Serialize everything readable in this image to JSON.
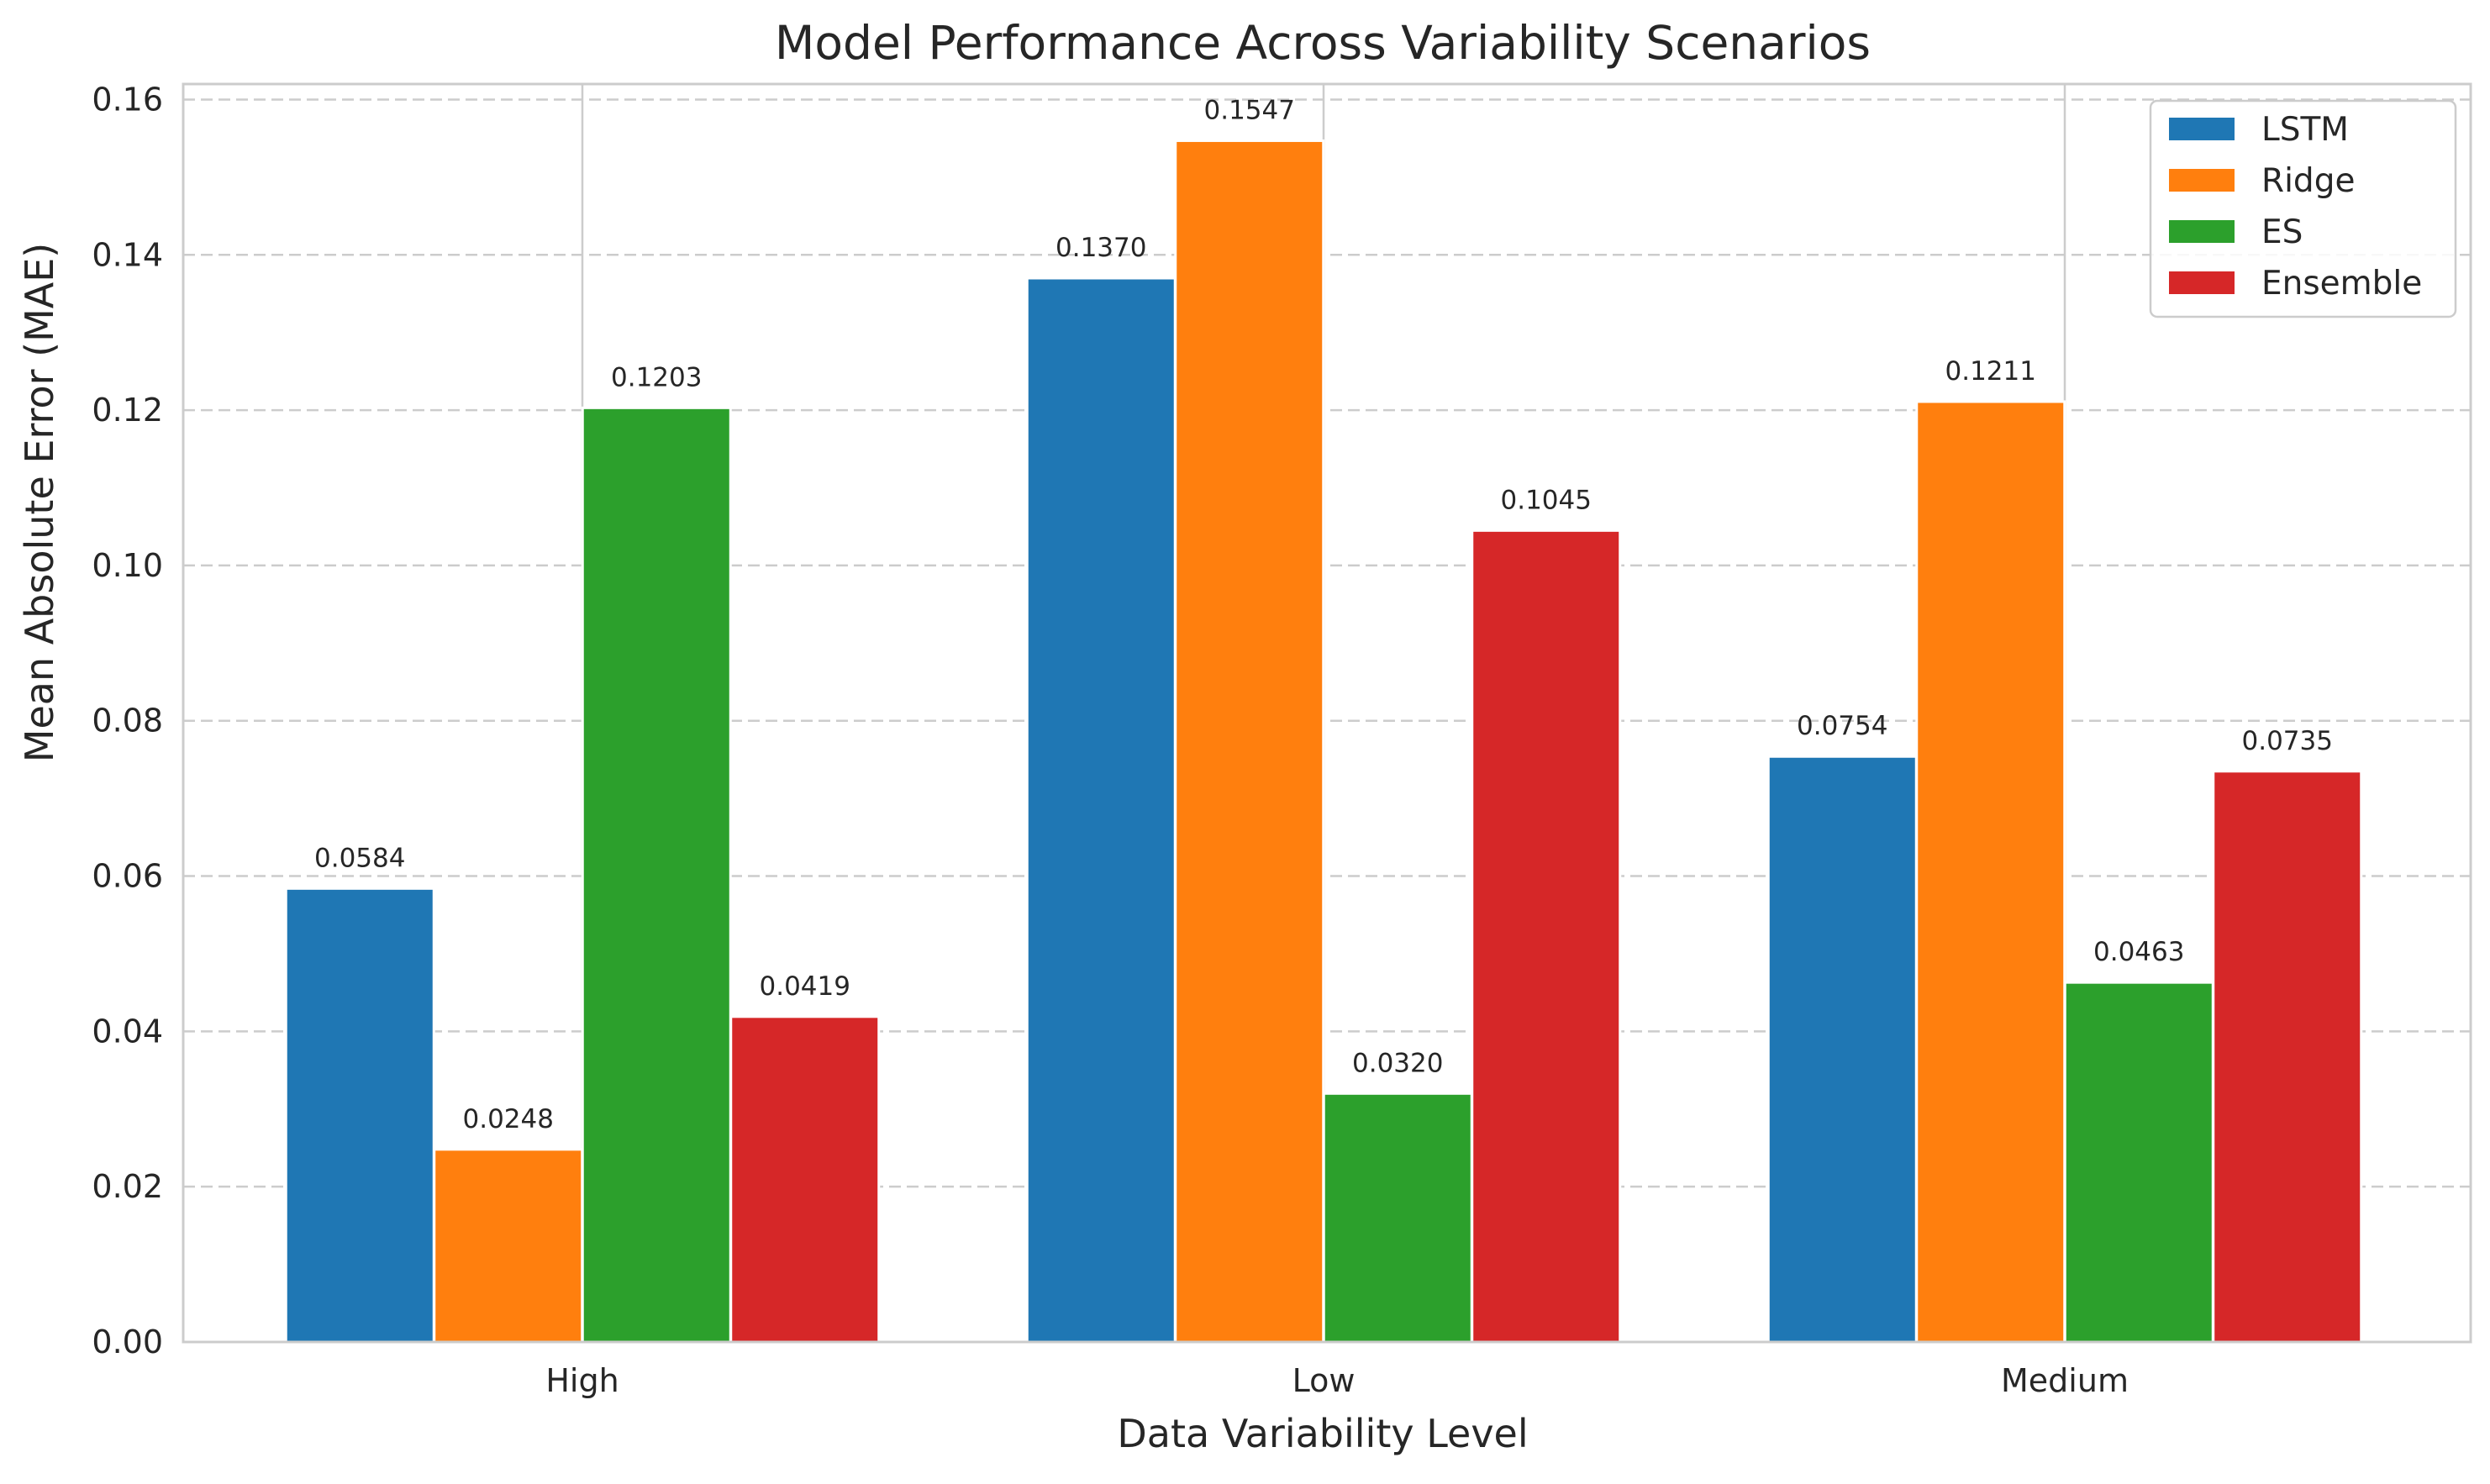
{
  "chart_data": {
    "type": "bar",
    "title": "Model Performance Across Variability Scenarios",
    "xlabel": "Data Variability Level",
    "ylabel": "Mean Absolute Error (MAE)",
    "categories": [
      "High",
      "Low",
      "Medium"
    ],
    "ylim": [
      0,
      0.162
    ],
    "yticks": [
      0.0,
      0.02,
      0.04,
      0.06,
      0.08,
      0.1,
      0.12,
      0.14,
      0.16
    ],
    "ytick_labels": [
      "0.00",
      "0.02",
      "0.04",
      "0.06",
      "0.08",
      "0.10",
      "0.12",
      "0.14",
      "0.16"
    ],
    "grid": "dashed horizontal (y-axis)",
    "legend_position": "top-right",
    "series": [
      {
        "name": "LSTM",
        "color": "#1f77b4",
        "values": [
          0.0584,
          0.137,
          0.0754
        ],
        "labels": [
          "0.0584",
          "0.1370",
          "0.0754"
        ]
      },
      {
        "name": "Ridge",
        "color": "#ff7f0e",
        "values": [
          0.0248,
          0.1547,
          0.1211
        ],
        "labels": [
          "0.0248",
          "0.1547",
          "0.1211"
        ]
      },
      {
        "name": "ES",
        "color": "#2ca02c",
        "values": [
          0.1203,
          0.032,
          0.0463
        ],
        "labels": [
          "0.1203",
          "0.0320",
          "0.0463"
        ]
      },
      {
        "name": "Ensemble",
        "color": "#d62728",
        "values": [
          0.0419,
          0.1045,
          0.0735
        ],
        "labels": [
          "0.0419",
          "0.1045",
          "0.0735"
        ]
      }
    ]
  }
}
